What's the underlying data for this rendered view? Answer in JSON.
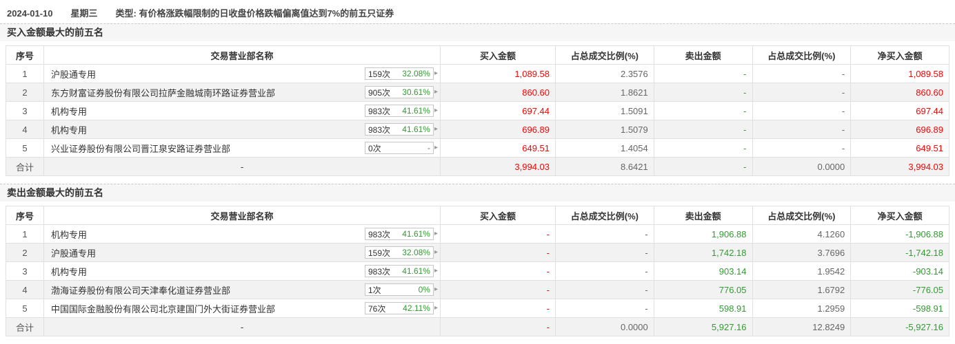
{
  "header": {
    "date": "2024-01-10",
    "weekday": "星期三",
    "type": "类型: 有价格涨跌幅限制的日收盘价格跌幅偏离值达到7%的前五只证券"
  },
  "columns": [
    "序号",
    "交易营业部名称",
    "买入金额",
    "占总成交比例(%)",
    "卖出金额",
    "占总成交比例(%)",
    "净买入金额"
  ],
  "colors": {
    "red": "#ff0000",
    "green": "#339933",
    "gray": "#666666"
  },
  "badge_arrow": "▸",
  "sections": [
    {
      "title": "买入金额最大的前五名",
      "rows": [
        {
          "no": "1",
          "name": "沪股通专用",
          "badge": {
            "count": "159次",
            "pct": "32.08%",
            "pct_color": "green"
          },
          "cells": [
            {
              "t": "1,089.58",
              "c": "red"
            },
            {
              "t": "2.3576",
              "c": "gray"
            },
            {
              "t": "-",
              "c": "green"
            },
            {
              "t": "-",
              "c": "gray"
            },
            {
              "t": "1,089.58",
              "c": "red"
            }
          ]
        },
        {
          "no": "2",
          "name": "东方财富证券股份有限公司拉萨金融城南环路证券营业部",
          "badge": {
            "count": "905次",
            "pct": "30.61%",
            "pct_color": "green"
          },
          "cells": [
            {
              "t": "860.60",
              "c": "red"
            },
            {
              "t": "1.8621",
              "c": "gray"
            },
            {
              "t": "-",
              "c": "green"
            },
            {
              "t": "-",
              "c": "gray"
            },
            {
              "t": "860.60",
              "c": "red"
            }
          ]
        },
        {
          "no": "3",
          "name": "机构专用",
          "badge": {
            "count": "983次",
            "pct": "41.61%",
            "pct_color": "green"
          },
          "cells": [
            {
              "t": "697.44",
              "c": "red"
            },
            {
              "t": "1.5091",
              "c": "gray"
            },
            {
              "t": "-",
              "c": "green"
            },
            {
              "t": "-",
              "c": "gray"
            },
            {
              "t": "697.44",
              "c": "red"
            }
          ]
        },
        {
          "no": "4",
          "name": "机构专用",
          "badge": {
            "count": "983次",
            "pct": "41.61%",
            "pct_color": "green"
          },
          "cells": [
            {
              "t": "696.89",
              "c": "red"
            },
            {
              "t": "1.5079",
              "c": "gray"
            },
            {
              "t": "-",
              "c": "green"
            },
            {
              "t": "-",
              "c": "gray"
            },
            {
              "t": "696.89",
              "c": "red"
            }
          ]
        },
        {
          "no": "5",
          "name": "兴业证券股份有限公司晋江泉安路证券营业部",
          "badge": {
            "count": "0次",
            "pct": "-",
            "pct_color": "gray"
          },
          "cells": [
            {
              "t": "649.51",
              "c": "red"
            },
            {
              "t": "1.4054",
              "c": "gray"
            },
            {
              "t": "-",
              "c": "green"
            },
            {
              "t": "-",
              "c": "gray"
            },
            {
              "t": "649.51",
              "c": "red"
            }
          ]
        }
      ],
      "total": {
        "no": "合计",
        "name": "-",
        "badge": null,
        "cells": [
          {
            "t": "3,994.03",
            "c": "red"
          },
          {
            "t": "8.6421",
            "c": "gray"
          },
          {
            "t": "-",
            "c": "green"
          },
          {
            "t": "0.0000",
            "c": "gray"
          },
          {
            "t": "3,994.03",
            "c": "red"
          }
        ]
      }
    },
    {
      "title": "卖出金额最大的前五名",
      "rows": [
        {
          "no": "1",
          "name": "机构专用",
          "badge": {
            "count": "983次",
            "pct": "41.61%",
            "pct_color": "green"
          },
          "cells": [
            {
              "t": "-",
              "c": "red"
            },
            {
              "t": "-",
              "c": "gray"
            },
            {
              "t": "1,906.88",
              "c": "green"
            },
            {
              "t": "4.1260",
              "c": "gray"
            },
            {
              "t": "-1,906.88",
              "c": "green"
            }
          ]
        },
        {
          "no": "2",
          "name": "沪股通专用",
          "badge": {
            "count": "159次",
            "pct": "32.08%",
            "pct_color": "green"
          },
          "cells": [
            {
              "t": "-",
              "c": "red"
            },
            {
              "t": "-",
              "c": "gray"
            },
            {
              "t": "1,742.18",
              "c": "green"
            },
            {
              "t": "3.7696",
              "c": "gray"
            },
            {
              "t": "-1,742.18",
              "c": "green"
            }
          ]
        },
        {
          "no": "3",
          "name": "机构专用",
          "badge": {
            "count": "983次",
            "pct": "41.61%",
            "pct_color": "green"
          },
          "cells": [
            {
              "t": "-",
              "c": "red"
            },
            {
              "t": "-",
              "c": "gray"
            },
            {
              "t": "903.14",
              "c": "green"
            },
            {
              "t": "1.9542",
              "c": "gray"
            },
            {
              "t": "-903.14",
              "c": "green"
            }
          ]
        },
        {
          "no": "4",
          "name": "渤海证券股份有限公司天津奉化道证券营业部",
          "badge": {
            "count": "1次",
            "pct": "0%",
            "pct_color": "green"
          },
          "cells": [
            {
              "t": "-",
              "c": "red"
            },
            {
              "t": "-",
              "c": "gray"
            },
            {
              "t": "776.05",
              "c": "green"
            },
            {
              "t": "1.6792",
              "c": "gray"
            },
            {
              "t": "-776.05",
              "c": "green"
            }
          ]
        },
        {
          "no": "5",
          "name": "中国国际金融股份有限公司北京建国门外大街证券营业部",
          "badge": {
            "count": "76次",
            "pct": "42.11%",
            "pct_color": "green"
          },
          "cells": [
            {
              "t": "-",
              "c": "red"
            },
            {
              "t": "-",
              "c": "gray"
            },
            {
              "t": "598.91",
              "c": "green"
            },
            {
              "t": "1.2959",
              "c": "gray"
            },
            {
              "t": "-598.91",
              "c": "green"
            }
          ]
        }
      ],
      "total": {
        "no": "合计",
        "name": "-",
        "badge": null,
        "cells": [
          {
            "t": "-",
            "c": "red"
          },
          {
            "t": "0.0000",
            "c": "gray"
          },
          {
            "t": "5,927.16",
            "c": "green"
          },
          {
            "t": "12.8249",
            "c": "gray"
          },
          {
            "t": "-5,927.16",
            "c": "green"
          }
        ]
      }
    }
  ]
}
